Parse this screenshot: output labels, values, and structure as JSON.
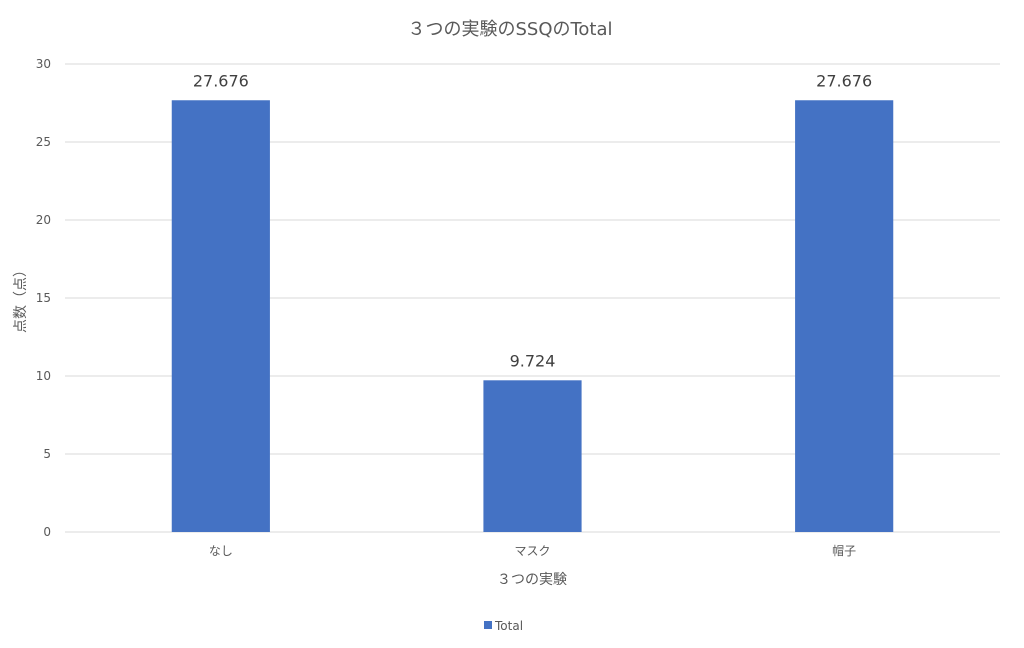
{
  "chart_data": {
    "type": "bar",
    "title": "３つの実験のSSQのTotal",
    "xlabel": "３つの実験",
    "ylabel": "点数（点）",
    "categories": [
      "なし",
      "マスク",
      "帽子"
    ],
    "series": [
      {
        "name": "Total",
        "values": [
          27.676,
          9.724,
          27.676
        ],
        "color": "#4472c4"
      }
    ],
    "data_labels": [
      "27.676",
      "9.724",
      "27.676"
    ],
    "ylim": [
      0,
      30
    ],
    "yticks": [
      0,
      5,
      10,
      15,
      20,
      25,
      30
    ],
    "grid": true,
    "legend_position": "bottom"
  }
}
